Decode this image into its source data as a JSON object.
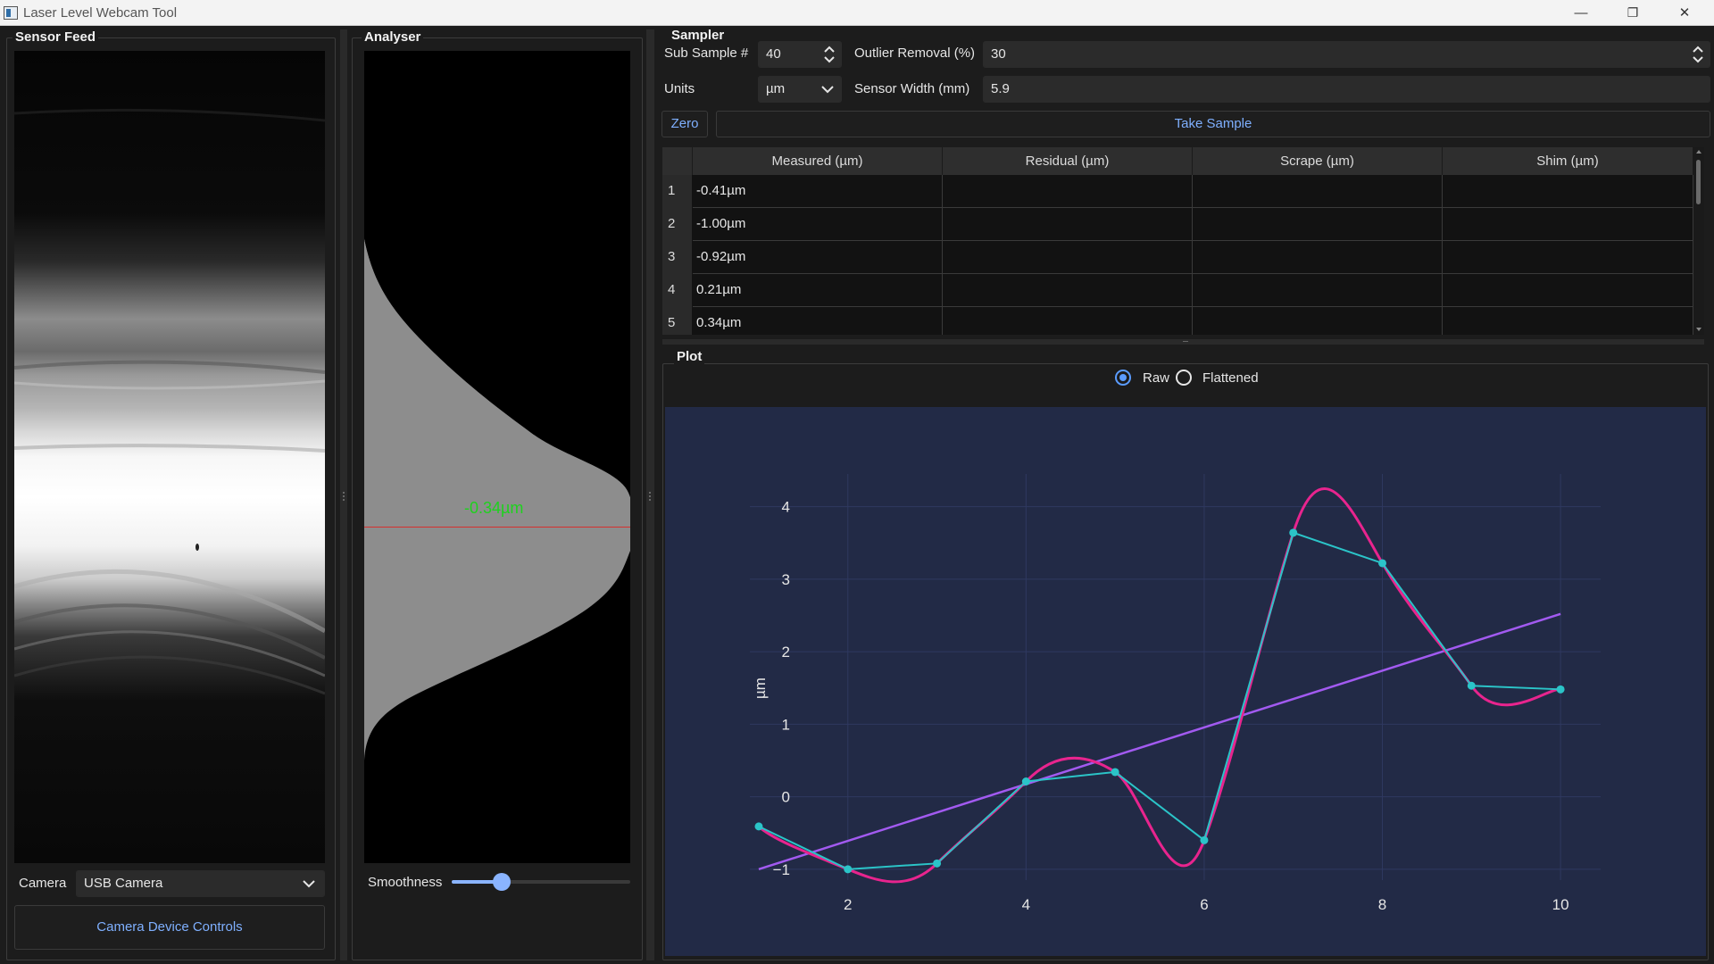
{
  "window": {
    "title": "Laser Level Webcam Tool",
    "minimize_label": "—",
    "restore_label": "❐",
    "close_label": "✕"
  },
  "sensor_feed": {
    "title": "Sensor Feed",
    "camera_label": "Camera",
    "camera_value": "USB Camera",
    "device_controls_label": "Camera Device Controls"
  },
  "analyser": {
    "title": "Analyser",
    "readout": "-0.34µm",
    "readout_color": "#1ed21e",
    "marker_color": "#d6302e",
    "smoothness_label": "Smoothness",
    "smoothness_value": 0.28
  },
  "sampler": {
    "title": "Sampler",
    "sub_sample_label": "Sub Sample #",
    "sub_sample_value": "40",
    "outlier_label": "Outlier Removal (%)",
    "outlier_value": "30",
    "units_label": "Units",
    "units_value": "µm",
    "sensor_width_label": "Sensor Width (mm)",
    "sensor_width_value": "5.9",
    "zero_label": "Zero",
    "take_sample_label": "Take Sample",
    "table": {
      "columns": [
        "Measured (µm)",
        "Residual (µm)",
        "Scrape (µm)",
        "Shim (µm)"
      ],
      "rows": [
        {
          "index": "1",
          "measured": "-0.41µm",
          "residual": "",
          "scrape": "",
          "shim": ""
        },
        {
          "index": "2",
          "measured": "-1.00µm",
          "residual": "",
          "scrape": "",
          "shim": ""
        },
        {
          "index": "3",
          "measured": "-0.92µm",
          "residual": "",
          "scrape": "",
          "shim": ""
        },
        {
          "index": "4",
          "measured": "0.21µm",
          "residual": "",
          "scrape": "",
          "shim": ""
        },
        {
          "index": "5",
          "measured": "0.34µm",
          "residual": "",
          "scrape": "",
          "shim": ""
        }
      ]
    }
  },
  "plot": {
    "title": "Plot",
    "raw_label": "Raw",
    "flattened_label": "Flattened",
    "selected": "Raw"
  },
  "chart_data": {
    "type": "line",
    "ylabel": "µm",
    "xlim": [
      0.9,
      10.45
    ],
    "ylim": [
      -1.15,
      4.45
    ],
    "xticks": [
      2,
      4,
      6,
      8,
      10
    ],
    "yticks": [
      -1,
      0,
      1,
      2,
      3,
      4
    ],
    "ytick_labels": [
      "−1",
      "0",
      "1",
      "2",
      "3",
      "4"
    ],
    "grid": true,
    "background": "#222a46",
    "series": [
      {
        "kind": "points",
        "color": "#2bc4c8",
        "x": [
          1,
          2,
          3,
          4,
          5,
          6,
          7,
          8,
          9,
          10
        ],
        "y": [
          -0.41,
          -1.0,
          -0.92,
          0.21,
          0.34,
          -0.6,
          3.64,
          3.22,
          1.53,
          1.48
        ]
      },
      {
        "kind": "spline",
        "color": "#e8248e",
        "x": [
          1,
          2,
          3,
          4,
          5,
          6,
          7,
          8,
          9,
          10
        ],
        "y": [
          -0.41,
          -1.0,
          -0.92,
          0.21,
          0.34,
          -0.6,
          3.64,
          3.22,
          1.53,
          1.48
        ]
      },
      {
        "kind": "fit",
        "color": "#a25af0",
        "x": [
          1,
          10
        ],
        "y": [
          -1.0,
          2.52
        ]
      }
    ]
  }
}
